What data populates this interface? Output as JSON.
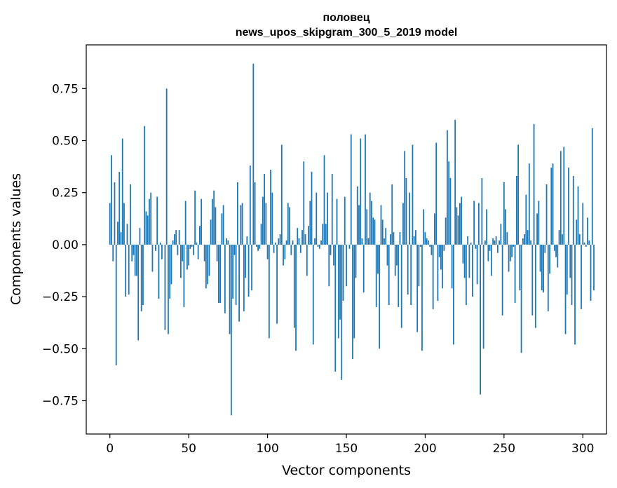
{
  "chart_data": {
    "type": "bar",
    "title": "половец",
    "subtitle": "news_upos_skipgram_300_5_2019 model",
    "xlabel": "Vector components",
    "ylabel": "Components values",
    "xlim": [
      -15,
      315
    ],
    "ylim": [
      -0.91,
      0.96
    ],
    "xticks": [
      0,
      50,
      100,
      150,
      200,
      250,
      300
    ],
    "yticks": [
      -0.75,
      -0.5,
      -0.25,
      0.0,
      0.25,
      0.5,
      0.75
    ],
    "ytick_labels": [
      "−0.75",
      "−0.50",
      "−0.25",
      "0.00",
      "0.25",
      "0.50",
      "0.75"
    ],
    "grid": false,
    "color": "#1f77b4",
    "x_start": 0,
    "values": [
      0.2,
      0.43,
      -0.08,
      0.3,
      -0.58,
      0.11,
      0.35,
      0.06,
      0.51,
      0.2,
      -0.25,
      0.1,
      -0.24,
      0.29,
      -0.08,
      -0.05,
      -0.15,
      -0.15,
      -0.46,
      0.08,
      -0.32,
      -0.29,
      0.57,
      0.16,
      0.14,
      0.22,
      0.25,
      -0.13,
      0.0,
      -0.03,
      0.23,
      -0.26,
      0.01,
      -0.07,
      0.0,
      -0.41,
      0.75,
      -0.43,
      -0.26,
      -0.19,
      0.02,
      0.05,
      0.07,
      -0.05,
      0.07,
      -0.16,
      -0.08,
      -0.3,
      0.21,
      -0.12,
      -0.1,
      -0.02,
      -0.01,
      -0.05,
      0.26,
      0.01,
      -0.07,
      0.09,
      0.22,
      0.0,
      -0.08,
      -0.21,
      -0.19,
      -0.15,
      0.12,
      0.22,
      0.26,
      0.18,
      -0.08,
      -0.28,
      -0.28,
      0.15,
      0.19,
      -0.33,
      0.03,
      0.02,
      -0.43,
      -0.82,
      -0.26,
      -0.05,
      -0.29,
      0.3,
      -0.37,
      0.19,
      0.2,
      -0.32,
      -0.16,
      0.04,
      -0.25,
      0.38,
      -0.22,
      0.87,
      0.3,
      -0.01,
      -0.03,
      -0.02,
      0.1,
      0.23,
      0.34,
      0.2,
      -0.07,
      -0.45,
      0.36,
      0.25,
      -0.04,
      0.01,
      -0.38,
      0.03,
      0.05,
      0.48,
      -0.1,
      -0.07,
      0.02,
      0.2,
      0.18,
      -0.05,
      0.02,
      -0.4,
      -0.51,
      0.08,
      0.03,
      -0.04,
      0.07,
      0.4,
      0.05,
      -0.15,
      0.09,
      0.21,
      0.35,
      -0.48,
      0.03,
      0.25,
      -0.01,
      -0.02,
      0.02,
      0.1,
      0.43,
      0.1,
      0.25,
      -0.2,
      -0.05,
      0.34,
      -0.1,
      -0.61,
      0.22,
      -0.45,
      -0.36,
      -0.65,
      -0.27,
      0.23,
      -0.2,
      0.0,
      -0.02,
      0.53,
      -0.55,
      -0.45,
      -0.16,
      0.28,
      0.19,
      0.51,
      0.03,
      -0.23,
      0.53,
      0.17,
      0.03,
      0.25,
      0.21,
      0.13,
      0.12,
      -0.3,
      -0.14,
      -0.5,
      0.19,
      0.12,
      0.03,
      0.08,
      -0.1,
      -0.29,
      0.05,
      0.29,
      0.06,
      -0.15,
      -0.1,
      -0.3,
      0.06,
      -0.4,
      0.2,
      0.45,
      0.32,
      -0.24,
      0.25,
      -0.29,
      0.48,
      0.04,
      0.07,
      -0.42,
      -0.2,
      -0.01,
      -0.51,
      0.17,
      0.06,
      0.03,
      0.02,
      -0.01,
      -0.05,
      -0.31,
      0.15,
      0.49,
      -0.27,
      -0.06,
      -0.12,
      -0.21,
      -0.03,
      0.13,
      0.55,
      0.4,
      0.32,
      -0.21,
      -0.48,
      0.6,
      0.18,
      0.14,
      0.2,
      0.23,
      -0.09,
      -0.16,
      -0.29,
      0.04,
      -0.16,
      0.01,
      -0.25,
      0.21,
      -0.02,
      -0.19,
      0.2,
      -0.72,
      0.32,
      -0.5,
      0.02,
      0.17,
      -0.08,
      -0.03,
      -0.15,
      0.03,
      0.02,
      0.04,
      -0.04,
      0.02,
      0.1,
      -0.34,
      0.3,
      0.17,
      0.06,
      -0.13,
      -0.08,
      -0.06,
      -0.01,
      -0.28,
      0.33,
      0.48,
      -0.22,
      -0.52,
      0.03,
      0.05,
      0.24,
      0.07,
      0.39,
      0.02,
      -0.34,
      0.58,
      -0.4,
      0.15,
      0.21,
      -0.13,
      -0.22,
      -0.23,
      -0.04,
      0.29,
      -0.32,
      -0.14,
      0.37,
      0.39,
      -0.03,
      -0.06,
      -0.11,
      0.07,
      0.45,
      0.05,
      0.47,
      -0.43,
      -0.24,
      0.37,
      -0.16,
      -0.29,
      0.33,
      -0.48,
      0.12,
      0.28,
      0.05,
      -0.31,
      0.2,
      0.01,
      -0.01,
      0.13,
      0.02,
      -0.27,
      0.56,
      -0.22
    ]
  }
}
